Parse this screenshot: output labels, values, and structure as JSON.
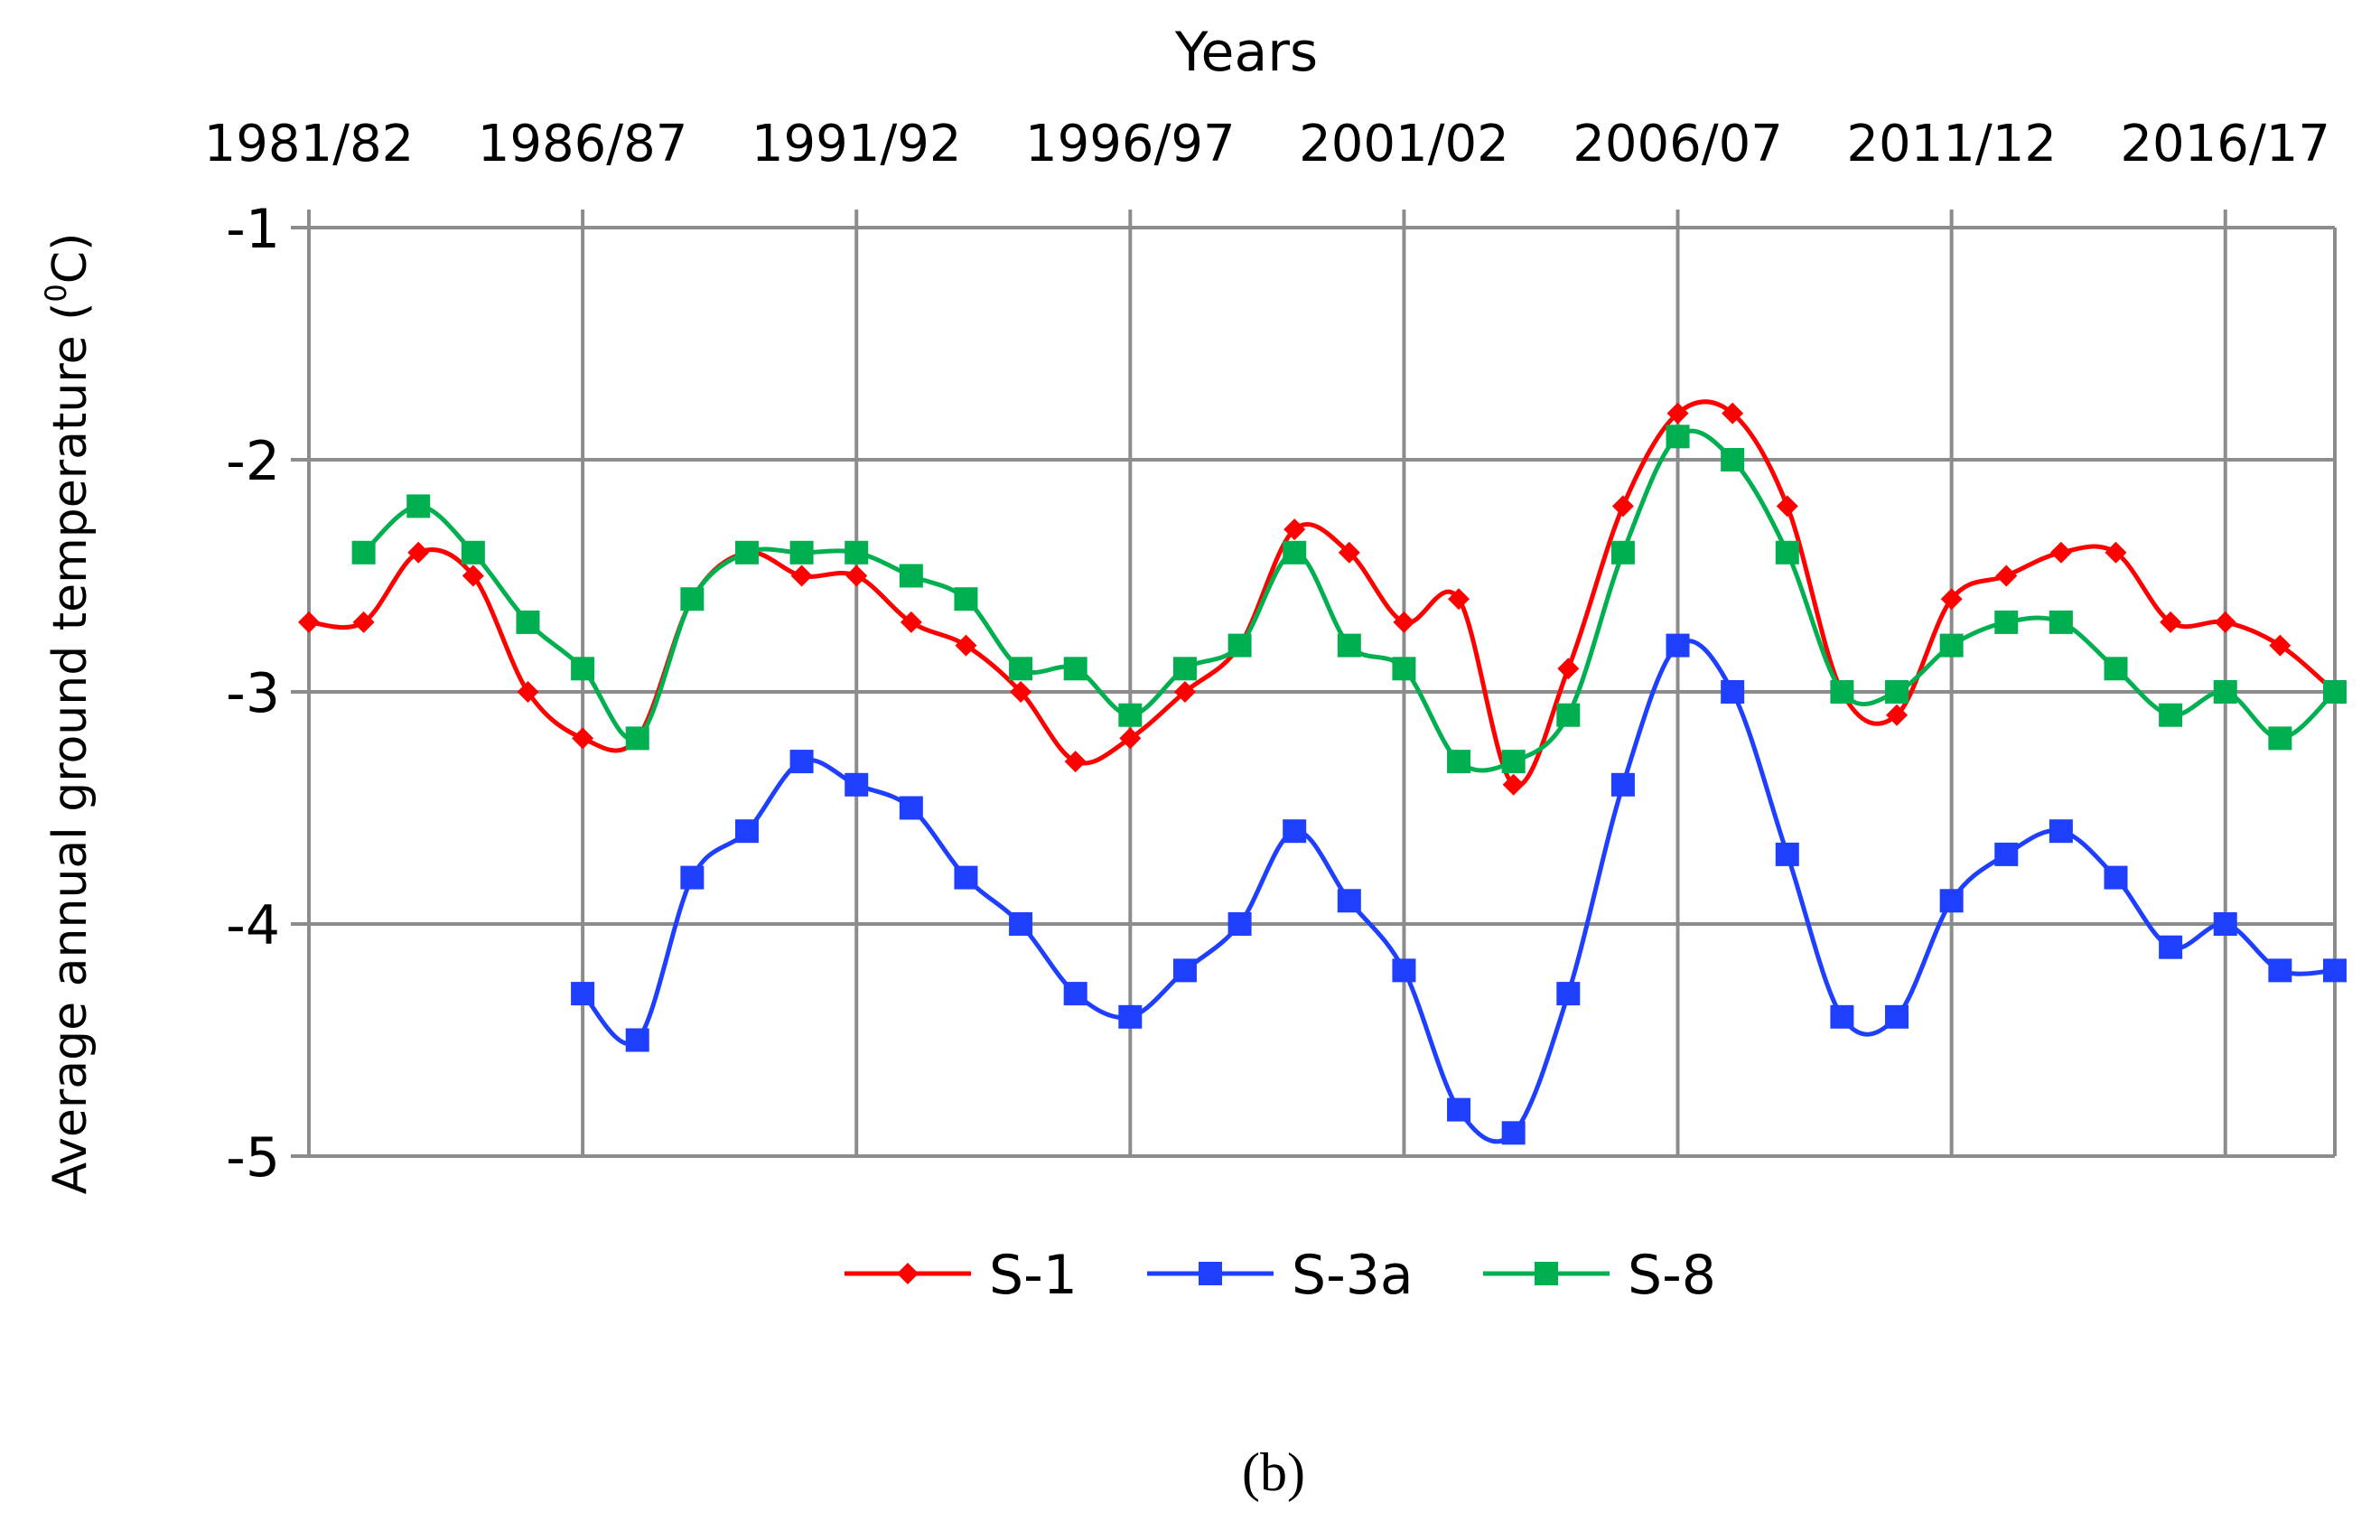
{
  "chart_data": {
    "type": "line",
    "title": "",
    "xlabel": "Years",
    "ylabel_main": "Average annual ground temperature (",
    "ylabel_sup": "0",
    "ylabel_end": "C)",
    "x_axis_position": "top",
    "x_tick_labels": [
      "1981/82",
      "1986/87",
      "1991/92",
      "1996/97",
      "2001/02",
      "2006/07",
      "2011/12",
      "2016/17"
    ],
    "x_tick_index": [
      0,
      5,
      10,
      15,
      20,
      25,
      30,
      35
    ],
    "y_ticks": [
      -1,
      -2,
      -3,
      -4,
      -5
    ],
    "ylim": [
      -5,
      -1
    ],
    "grid": true,
    "legend_position": "bottom",
    "smooth": true,
    "series": [
      {
        "name": "S-1",
        "color": "#ff0000",
        "marker": "diamond",
        "start_index": 0,
        "values": [
          -2.7,
          -2.7,
          -2.4,
          -2.5,
          -3.0,
          -3.2,
          -3.2,
          -2.6,
          -2.4,
          -2.5,
          -2.5,
          -2.7,
          -2.8,
          -3.0,
          -3.3,
          -3.2,
          -3.0,
          -2.8,
          -2.3,
          -2.4,
          -2.7,
          -2.6,
          -3.4,
          -2.9,
          -2.2,
          -1.8,
          -1.8,
          -2.2,
          -3.0,
          -3.1,
          -2.6,
          -2.5,
          -2.4,
          -2.4,
          -2.7,
          -2.7,
          -2.8,
          -3.0
        ]
      },
      {
        "name": "S-3a",
        "color": "#1f3fff",
        "marker": "square",
        "start_index": 5,
        "values": [
          -4.3,
          -4.5,
          -3.8,
          -3.6,
          -3.3,
          -3.4,
          -3.5,
          -3.8,
          -4.0,
          -4.3,
          -4.4,
          -4.2,
          -4.0,
          -3.6,
          -3.9,
          -4.2,
          -4.8,
          -4.9,
          -4.3,
          -3.4,
          -2.8,
          -3.0,
          -3.7,
          -4.4,
          -4.4,
          -3.9,
          -3.7,
          -3.6,
          -3.8,
          -4.1,
          -4.0,
          -4.2,
          -4.2
        ]
      },
      {
        "name": "S-8",
        "color": "#00b050",
        "marker": "square",
        "start_index": 1,
        "values": [
          -2.4,
          -2.2,
          -2.4,
          -2.7,
          -2.9,
          -3.2,
          -2.6,
          -2.4,
          -2.4,
          -2.4,
          -2.5,
          -2.6,
          -2.9,
          -2.9,
          -3.1,
          -2.9,
          -2.8,
          -2.4,
          -2.8,
          -2.9,
          -3.3,
          -3.3,
          -3.1,
          -2.4,
          -1.9,
          -2.0,
          -2.4,
          -3.0,
          -3.0,
          -2.8,
          -2.7,
          -2.7,
          -2.9,
          -3.1,
          -3.0,
          -3.2,
          -3.0
        ]
      }
    ],
    "caption": "(b)"
  }
}
